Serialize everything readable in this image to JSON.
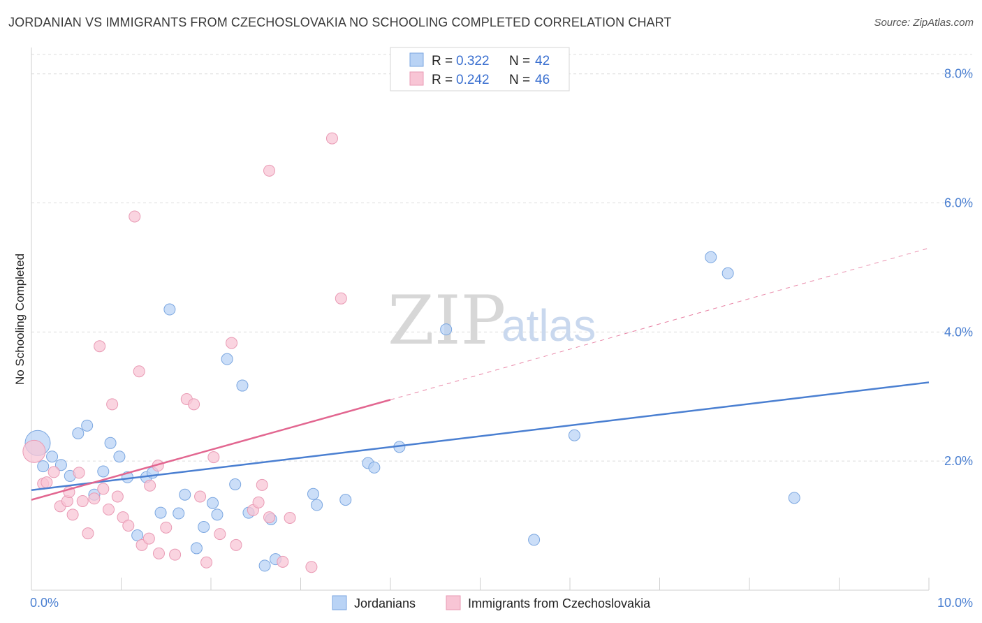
{
  "title": "JORDANIAN VS IMMIGRANTS FROM CZECHOSLOVAKIA NO SCHOOLING COMPLETED CORRELATION CHART",
  "source": "Source: ZipAtlas.com",
  "watermark": {
    "zip": "ZIP",
    "atlas": "atlas"
  },
  "colors": {
    "blue": "#4a7fd1",
    "blue_fill": "#b9d3f5",
    "pink": "#e26690",
    "pink_fill": "#f8c5d5"
  },
  "chart_data": {
    "type": "scatter",
    "xlabel": "",
    "ylabel": "No Schooling Completed",
    "xlim": [
      0,
      10
    ],
    "ylim": [
      0,
      8.3
    ],
    "x_tick_labels": [
      "0.0%",
      "10.0%"
    ],
    "y_ticks": [
      2,
      4,
      6,
      8
    ],
    "y_tick_labels": [
      "2.0%",
      "4.0%",
      "6.0%",
      "8.0%"
    ],
    "legend": [
      {
        "r_label": "R = ",
        "r_value": "0.322",
        "n_label": "N = ",
        "n_value": "42"
      },
      {
        "r_label": "R = ",
        "r_value": "0.242",
        "n_label": "N = ",
        "n_value": "46"
      }
    ],
    "series": [
      {
        "name": "Jordanians",
        "points": [
          [
            0.07,
            2.28
          ],
          [
            0.13,
            1.92
          ],
          [
            0.23,
            2.07
          ],
          [
            0.33,
            1.94
          ],
          [
            0.43,
            1.77
          ],
          [
            0.52,
            2.43
          ],
          [
            0.62,
            2.55
          ],
          [
            0.7,
            1.48
          ],
          [
            0.8,
            1.84
          ],
          [
            0.88,
            2.28
          ],
          [
            0.98,
            2.07
          ],
          [
            1.07,
            1.75
          ],
          [
            1.18,
            0.85
          ],
          [
            1.28,
            1.75
          ],
          [
            1.35,
            1.82
          ],
          [
            1.44,
            1.2
          ],
          [
            1.54,
            4.35
          ],
          [
            1.64,
            1.19
          ],
          [
            1.71,
            1.48
          ],
          [
            1.84,
            0.65
          ],
          [
            1.92,
            0.98
          ],
          [
            2.02,
            1.35
          ],
          [
            2.07,
            1.17
          ],
          [
            2.18,
            3.58
          ],
          [
            2.27,
            1.64
          ],
          [
            2.35,
            3.17
          ],
          [
            2.42,
            1.2
          ],
          [
            2.6,
            0.38
          ],
          [
            2.67,
            1.1
          ],
          [
            3.14,
            1.49
          ],
          [
            3.18,
            1.32
          ],
          [
            3.5,
            1.4
          ],
          [
            3.75,
            1.97
          ],
          [
            3.82,
            1.9
          ],
          [
            4.1,
            2.22
          ],
          [
            4.62,
            4.04
          ],
          [
            5.6,
            0.78
          ],
          [
            6.05,
            2.4
          ],
          [
            7.57,
            5.16
          ],
          [
            7.76,
            4.91
          ],
          [
            8.5,
            1.43
          ],
          [
            2.72,
            0.48
          ]
        ],
        "trend": {
          "x": [
            0,
            10
          ],
          "y": [
            1.55,
            3.22
          ]
        }
      },
      {
        "name": "Immigrants from Czechoslovakia",
        "points": [
          [
            0.03,
            2.15
          ],
          [
            0.13,
            1.65
          ],
          [
            0.17,
            1.67
          ],
          [
            0.25,
            1.83
          ],
          [
            0.32,
            1.3
          ],
          [
            0.4,
            1.38
          ],
          [
            0.42,
            1.52
          ],
          [
            0.46,
            1.17
          ],
          [
            0.53,
            1.82
          ],
          [
            0.57,
            1.38
          ],
          [
            0.63,
            0.88
          ],
          [
            0.7,
            1.42
          ],
          [
            0.76,
            3.78
          ],
          [
            0.8,
            1.57
          ],
          [
            0.86,
            1.25
          ],
          [
            0.9,
            2.88
          ],
          [
            0.96,
            1.45
          ],
          [
            1.02,
            1.13
          ],
          [
            1.08,
            1.0
          ],
          [
            1.15,
            5.79
          ],
          [
            1.2,
            3.39
          ],
          [
            1.23,
            0.7
          ],
          [
            1.31,
            0.8
          ],
          [
            1.32,
            1.62
          ],
          [
            1.41,
            1.93
          ],
          [
            1.42,
            0.57
          ],
          [
            1.5,
            0.97
          ],
          [
            1.6,
            0.55
          ],
          [
            1.73,
            2.96
          ],
          [
            1.81,
            2.88
          ],
          [
            1.88,
            1.45
          ],
          [
            1.95,
            0.43
          ],
          [
            2.03,
            2.06
          ],
          [
            2.1,
            0.87
          ],
          [
            2.23,
            3.83
          ],
          [
            2.28,
            0.7
          ],
          [
            2.47,
            1.24
          ],
          [
            2.53,
            1.36
          ],
          [
            2.57,
            1.63
          ],
          [
            2.65,
            1.13
          ],
          [
            2.65,
            6.5
          ],
          [
            2.8,
            0.44
          ],
          [
            2.88,
            1.12
          ],
          [
            3.12,
            0.36
          ],
          [
            3.35,
            7.0
          ],
          [
            3.45,
            4.52
          ]
        ],
        "trend": {
          "x": [
            0,
            4.0
          ],
          "y": [
            1.4,
            2.95
          ]
        },
        "trend_dashed": {
          "x": [
            4.0,
            10
          ],
          "y": [
            2.95,
            5.3
          ]
        }
      }
    ]
  }
}
